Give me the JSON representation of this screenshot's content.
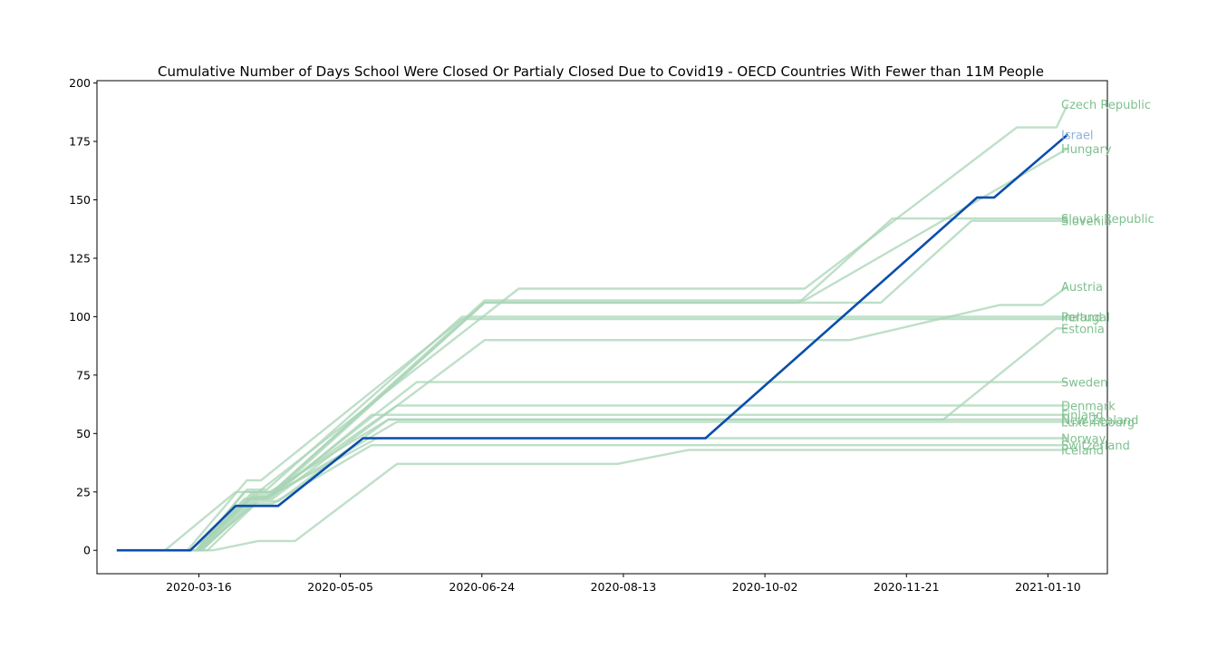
{
  "chart_data": {
    "type": "line",
    "title": "Cumulative Number of Days School Were Closed Or Partialy Closed Due to Covid19 - OECD Countries With Fewer than 11M People",
    "xlabel": "",
    "ylabel": "",
    "x_axis": "date",
    "xlim": [
      "2020-02-09",
      "2021-01-31"
    ],
    "ylim": [
      -10,
      201
    ],
    "x_ticks": [
      "2020-03-16",
      "2020-05-05",
      "2020-06-24",
      "2020-08-13",
      "2020-10-02",
      "2020-11-21",
      "2021-01-10"
    ],
    "y_ticks": [
      0,
      25,
      50,
      75,
      100,
      125,
      150,
      175,
      200
    ],
    "grid": false,
    "legend": "none",
    "highlight_color": "#0b4eab",
    "highlight_label_color": "#8fb1dc",
    "other_color": "#a8d4b6",
    "other_label_color": "#7fc08f",
    "series": [
      {
        "name": "Czech Republic",
        "highlight": false,
        "points": [
          [
            "2020-02-16",
            0
          ],
          [
            "2020-03-04",
            0
          ],
          [
            "2020-03-29",
            25
          ],
          [
            "2020-04-06",
            25
          ],
          [
            "2020-07-07",
            112
          ],
          [
            "2020-10-16",
            112
          ],
          [
            "2020-12-30",
            181
          ],
          [
            "2021-01-13",
            181
          ],
          [
            "2021-01-17",
            191
          ]
        ]
      },
      {
        "name": "Israel",
        "highlight": true,
        "points": [
          [
            "2020-02-16",
            0
          ],
          [
            "2020-03-13",
            0
          ],
          [
            "2020-03-29",
            19
          ],
          [
            "2020-04-13",
            19
          ],
          [
            "2020-05-13",
            48
          ],
          [
            "2020-09-11",
            48
          ],
          [
            "2020-12-16",
            151
          ],
          [
            "2020-12-22",
            151
          ],
          [
            "2021-01-17",
            178
          ]
        ]
      },
      {
        "name": "Hungary",
        "highlight": false,
        "points": [
          [
            "2020-02-16",
            0
          ],
          [
            "2020-03-15",
            0
          ],
          [
            "2020-04-01",
            25
          ],
          [
            "2020-04-11",
            25
          ],
          [
            "2020-06-25",
            107
          ],
          [
            "2020-10-16",
            107
          ],
          [
            "2021-01-17",
            172
          ]
        ]
      },
      {
        "name": "Slovak Republic",
        "highlight": false,
        "points": [
          [
            "2020-02-16",
            0
          ],
          [
            "2020-03-15",
            0
          ],
          [
            "2020-04-06",
            25
          ],
          [
            "2020-04-12",
            25
          ],
          [
            "2020-06-25",
            106
          ],
          [
            "2020-10-14",
            106
          ],
          [
            "2020-11-16",
            142
          ],
          [
            "2021-01-17",
            142
          ]
        ]
      },
      {
        "name": "Slovenia",
        "highlight": false,
        "points": [
          [
            "2020-02-16",
            0
          ],
          [
            "2020-03-15",
            0
          ],
          [
            "2020-04-04",
            25
          ],
          [
            "2020-04-11",
            25
          ],
          [
            "2020-06-25",
            106
          ],
          [
            "2020-11-12",
            106
          ],
          [
            "2020-12-14",
            141
          ],
          [
            "2021-01-17",
            141
          ]
        ]
      },
      {
        "name": "Austria",
        "highlight": false,
        "points": [
          [
            "2020-02-16",
            0
          ],
          [
            "2020-03-15",
            0
          ],
          [
            "2020-04-01",
            22
          ],
          [
            "2020-04-11",
            22
          ],
          [
            "2020-06-25",
            90
          ],
          [
            "2020-11-01",
            90
          ],
          [
            "2020-12-24",
            105
          ],
          [
            "2021-01-08",
            105
          ],
          [
            "2021-01-17",
            113
          ]
        ]
      },
      {
        "name": "Ireland",
        "highlight": false,
        "points": [
          [
            "2020-02-16",
            0
          ],
          [
            "2020-03-12",
            0
          ],
          [
            "2020-04-02",
            30
          ],
          [
            "2020-04-07",
            30
          ],
          [
            "2020-06-17",
            99
          ],
          [
            "2021-01-17",
            99
          ]
        ]
      },
      {
        "name": "Portugal",
        "highlight": false,
        "points": [
          [
            "2020-02-16",
            0
          ],
          [
            "2020-03-15",
            0
          ],
          [
            "2020-04-02",
            26
          ],
          [
            "2020-04-09",
            26
          ],
          [
            "2020-06-17",
            100
          ],
          [
            "2021-01-17",
            100
          ]
        ]
      },
      {
        "name": "Estonia",
        "highlight": false,
        "points": [
          [
            "2020-02-16",
            0
          ],
          [
            "2020-03-15",
            0
          ],
          [
            "2020-04-05",
            25
          ],
          [
            "2020-04-10",
            25
          ],
          [
            "2020-05-22",
            56
          ],
          [
            "2020-12-04",
            56
          ],
          [
            "2021-01-13",
            95
          ],
          [
            "2021-01-17",
            95
          ]
        ]
      },
      {
        "name": "Sweden",
        "highlight": false,
        "points": [
          [
            "2020-02-16",
            0
          ],
          [
            "2020-03-17",
            0
          ],
          [
            "2020-04-06",
            23
          ],
          [
            "2020-04-10",
            23
          ],
          [
            "2020-06-01",
            72
          ],
          [
            "2021-01-17",
            72
          ]
        ]
      },
      {
        "name": "Denmark",
        "highlight": false,
        "points": [
          [
            "2020-02-16",
            0
          ],
          [
            "2020-03-13",
            0
          ],
          [
            "2020-04-03",
            22
          ],
          [
            "2020-04-08",
            22
          ],
          [
            "2020-05-25",
            62
          ],
          [
            "2021-01-17",
            62
          ]
        ]
      },
      {
        "name": "Finland",
        "highlight": false,
        "points": [
          [
            "2020-02-16",
            0
          ],
          [
            "2020-03-17",
            0
          ],
          [
            "2020-04-06",
            22
          ],
          [
            "2020-04-10",
            22
          ],
          [
            "2020-05-16",
            58
          ],
          [
            "2021-01-17",
            58
          ]
        ]
      },
      {
        "name": "New Zealand",
        "highlight": false,
        "points": [
          [
            "2020-02-16",
            0
          ],
          [
            "2020-03-19",
            0
          ],
          [
            "2020-04-06",
            21
          ],
          [
            "2020-04-13",
            21
          ],
          [
            "2020-05-22",
            56
          ],
          [
            "2021-01-17",
            56
          ]
        ]
      },
      {
        "name": "Luxembourg",
        "highlight": false,
        "points": [
          [
            "2020-02-16",
            0
          ],
          [
            "2020-03-16",
            0
          ],
          [
            "2020-04-04",
            23
          ],
          [
            "2020-04-10",
            23
          ],
          [
            "2020-05-25",
            55
          ],
          [
            "2021-01-17",
            55
          ]
        ]
      },
      {
        "name": "Norway",
        "highlight": false,
        "points": [
          [
            "2020-02-16",
            0
          ],
          [
            "2020-03-16",
            0
          ],
          [
            "2020-04-06",
            24
          ],
          [
            "2020-04-11",
            24
          ],
          [
            "2020-05-18",
            48
          ],
          [
            "2021-01-17",
            48
          ]
        ]
      },
      {
        "name": "Switzerland",
        "highlight": false,
        "points": [
          [
            "2020-02-16",
            0
          ],
          [
            "2020-03-16",
            0
          ],
          [
            "2020-04-05",
            20
          ],
          [
            "2020-04-11",
            20
          ],
          [
            "2020-05-16",
            45
          ],
          [
            "2021-01-17",
            45
          ]
        ]
      },
      {
        "name": "Iceland",
        "highlight": false,
        "points": [
          [
            "2020-02-16",
            0
          ],
          [
            "2020-03-21",
            0
          ],
          [
            "2020-04-06",
            4
          ],
          [
            "2020-04-19",
            4
          ],
          [
            "2020-05-25",
            37
          ],
          [
            "2020-08-11",
            37
          ],
          [
            "2020-09-05",
            43
          ],
          [
            "2021-01-17",
            43
          ]
        ]
      }
    ],
    "labels": [
      {
        "name": "Czech Republic",
        "y": 191
      },
      {
        "name": "Israel",
        "y": 178
      },
      {
        "name": "Hungary",
        "y": 172
      },
      {
        "name": "Slovak Republic",
        "y": 142
      },
      {
        "name": "Slovenia",
        "y": 141
      },
      {
        "name": "Austria",
        "y": 113
      },
      {
        "name": "Portugal",
        "y": 100
      },
      {
        "name": "Ireland",
        "y": 100
      },
      {
        "name": "Estonia",
        "y": 95
      },
      {
        "name": "Sweden",
        "y": 72
      },
      {
        "name": "Denmark",
        "y": 62
      },
      {
        "name": "Finland",
        "y": 58
      },
      {
        "name": "New Zealand",
        "y": 56
      },
      {
        "name": "Luxembourg",
        "y": 55
      },
      {
        "name": "Norway",
        "y": 48
      },
      {
        "name": "Switzerland",
        "y": 45
      },
      {
        "name": "Iceland",
        "y": 43
      }
    ]
  }
}
